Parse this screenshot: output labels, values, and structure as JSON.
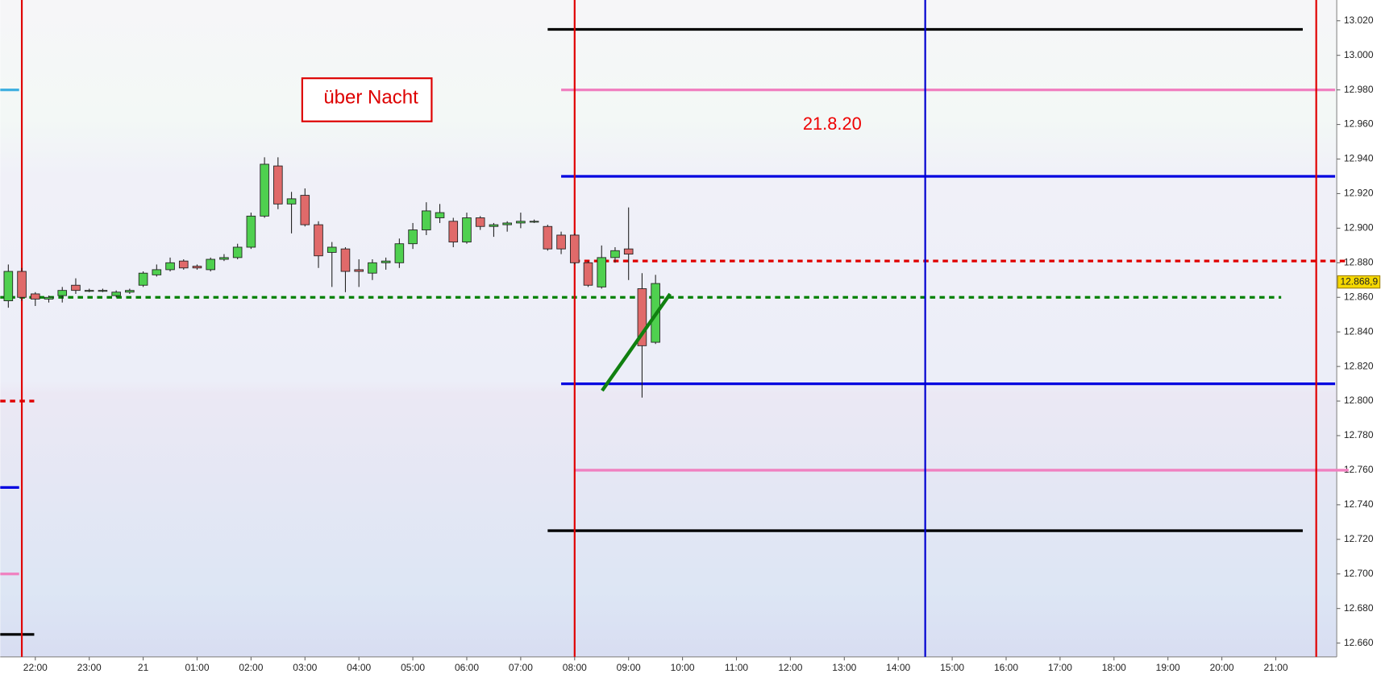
{
  "chart_data": {
    "type": "candlestick",
    "xlim": [
      -2.65,
      22.13
    ],
    "ylim": [
      12.652,
      13.032
    ],
    "xticks": [
      {
        "value": -2,
        "label": "22:00"
      },
      {
        "value": -1,
        "label": "23:00"
      },
      {
        "value": 0,
        "label": "21"
      },
      {
        "value": 1,
        "label": "01:00"
      },
      {
        "value": 2,
        "label": "02:00"
      },
      {
        "value": 3,
        "label": "03:00"
      },
      {
        "value": 4,
        "label": "04:00"
      },
      {
        "value": 5,
        "label": "05:00"
      },
      {
        "value": 6,
        "label": "06:00"
      },
      {
        "value": 7,
        "label": "07:00"
      },
      {
        "value": 8,
        "label": "08:00"
      },
      {
        "value": 9,
        "label": "09:00"
      },
      {
        "value": 10,
        "label": "10:00"
      },
      {
        "value": 11,
        "label": "11:00"
      },
      {
        "value": 12,
        "label": "12:00"
      },
      {
        "value": 13,
        "label": "13:00"
      },
      {
        "value": 14,
        "label": "14:00"
      },
      {
        "value": 15,
        "label": "15:00"
      },
      {
        "value": 16,
        "label": "16:00"
      },
      {
        "value": 17,
        "label": "17:00"
      },
      {
        "value": 18,
        "label": "18:00"
      },
      {
        "value": 19,
        "label": "19:00"
      },
      {
        "value": 20,
        "label": "20:00"
      },
      {
        "value": 21,
        "label": "21:00"
      }
    ],
    "yticks": [
      {
        "value": 12.66,
        "label": "12.660"
      },
      {
        "value": 12.68,
        "label": "12.680"
      },
      {
        "value": 12.7,
        "label": "12.700"
      },
      {
        "value": 12.72,
        "label": "12.720"
      },
      {
        "value": 12.74,
        "label": "12.740"
      },
      {
        "value": 12.76,
        "label": "12.760"
      },
      {
        "value": 12.78,
        "label": "12.780"
      },
      {
        "value": 12.8,
        "label": "12.800"
      },
      {
        "value": 12.82,
        "label": "12.820"
      },
      {
        "value": 12.84,
        "label": "12.840"
      },
      {
        "value": 12.86,
        "label": "12.860"
      },
      {
        "value": 12.88,
        "label": "12.880"
      },
      {
        "value": 12.9,
        "label": "12.900"
      },
      {
        "value": 12.92,
        "label": "12.920"
      },
      {
        "value": 12.94,
        "label": "12.940"
      },
      {
        "value": 12.96,
        "label": "12.960"
      },
      {
        "value": 12.98,
        "label": "12.980"
      },
      {
        "value": 13,
        "label": "13.000"
      },
      {
        "value": 13.02,
        "label": "13.020"
      }
    ],
    "up_color": "#4fd04f",
    "down_color": "#e06a6a",
    "x": [
      -2.5,
      -2.25,
      -2,
      -1.75,
      -1.5,
      -1.25,
      -1,
      -0.75,
      -0.5,
      -0.25,
      0,
      0.25,
      0.5,
      0.75,
      1,
      1.25,
      1.5,
      1.75,
      2,
      2.25,
      2.5,
      2.75,
      3,
      3.25,
      3.5,
      3.75,
      4,
      4.25,
      4.5,
      4.75,
      5,
      5.25,
      5.5,
      5.75,
      6,
      6.25,
      6.5,
      6.75,
      7,
      7.25,
      7.5,
      7.75,
      8,
      8.25,
      8.5,
      8.75,
      9,
      9.25,
      9.5
    ],
    "open": [
      12.858,
      12.875,
      12.862,
      12.859,
      12.861,
      12.867,
      12.864,
      12.864,
      12.861,
      12.863,
      12.867,
      12.873,
      12.876,
      12.881,
      12.878,
      12.876,
      12.882,
      12.883,
      12.889,
      12.907,
      12.936,
      12.914,
      12.919,
      12.902,
      12.886,
      12.888,
      12.876,
      12.874,
      12.88,
      12.88,
      12.891,
      12.899,
      12.906,
      12.904,
      12.892,
      12.906,
      12.901,
      12.902,
      12.903,
      12.904,
      12.901,
      12.896,
      12.896,
      12.88,
      12.866,
      12.883,
      12.888,
      12.865,
      12.834
    ],
    "high": [
      12.879,
      12.877,
      12.863,
      12.861,
      12.866,
      12.871,
      12.865,
      12.865,
      12.864,
      12.865,
      12.875,
      12.879,
      12.883,
      12.882,
      12.879,
      12.883,
      12.885,
      12.891,
      12.909,
      12.941,
      12.941,
      12.921,
      12.923,
      12.904,
      12.892,
      12.889,
      12.882,
      12.882,
      12.883,
      12.894,
      12.903,
      12.915,
      12.914,
      12.906,
      12.909,
      12.907,
      12.903,
      12.904,
      12.909,
      12.905,
      12.902,
      12.898,
      12.897,
      12.881,
      12.89,
      12.889,
      12.912,
      12.874,
      12.873
    ],
    "low": [
      12.854,
      12.858,
      12.855,
      12.857,
      12.857,
      12.862,
      12.863,
      12.863,
      12.86,
      12.862,
      12.866,
      12.872,
      12.875,
      12.876,
      12.876,
      12.875,
      12.881,
      12.882,
      12.888,
      12.906,
      12.911,
      12.897,
      12.901,
      12.877,
      12.866,
      12.863,
      12.866,
      12.87,
      12.876,
      12.877,
      12.888,
      12.896,
      12.903,
      12.889,
      12.891,
      12.899,
      12.895,
      12.898,
      12.9,
      12.903,
      12.887,
      12.885,
      12.879,
      12.866,
      12.865,
      12.88,
      12.87,
      12.802,
      12.833
    ],
    "close": [
      12.875,
      12.86,
      12.859,
      12.86,
      12.864,
      12.864,
      12.864,
      12.864,
      12.863,
      12.864,
      12.874,
      12.876,
      12.88,
      12.877,
      12.877,
      12.882,
      12.883,
      12.889,
      12.907,
      12.937,
      12.914,
      12.917,
      12.902,
      12.884,
      12.889,
      12.875,
      12.875,
      12.88,
      12.881,
      12.891,
      12.899,
      12.91,
      12.909,
      12.892,
      12.906,
      12.901,
      12.902,
      12.903,
      12.904,
      12.904,
      12.888,
      12.888,
      12.88,
      12.867,
      12.883,
      12.887,
      12.885,
      12.832,
      12.868
    ],
    "hlines": [
      {
        "value": 13.015,
        "from": 7.5,
        "to": 21.5,
        "color": "#000000",
        "style": "solid"
      },
      {
        "value": 12.98,
        "from": 7.75,
        "to": 22.1,
        "color": "#f080c0",
        "style": "solid"
      },
      {
        "value": 12.93,
        "from": 7.75,
        "to": 22.1,
        "color": "#0000e0",
        "style": "solid"
      },
      {
        "value": 12.881,
        "from": 8,
        "to": 22.3,
        "color": "#e00000",
        "style": "dotted"
      },
      {
        "value": 12.86,
        "from": -2.65,
        "to": 21.1,
        "color": "#008000",
        "style": "dotted"
      },
      {
        "value": 12.81,
        "from": 7.75,
        "to": 22.1,
        "color": "#0000e0",
        "style": "solid"
      },
      {
        "value": 12.76,
        "from": 8,
        "to": 22.35,
        "color": "#f080c0",
        "style": "solid"
      },
      {
        "value": 12.725,
        "from": 7.5,
        "to": 21.5,
        "color": "#000000",
        "style": "solid"
      },
      {
        "value": 12.98,
        "from": -2.65,
        "to": -2.3,
        "color": "#40b0e0",
        "style": "solid"
      },
      {
        "value": 12.8,
        "from": -2.65,
        "to": -2.02,
        "color": "#e00000",
        "style": "dotted"
      },
      {
        "value": 12.75,
        "from": -2.65,
        "to": -2.3,
        "color": "#0000e0",
        "style": "solid"
      },
      {
        "value": 12.7,
        "from": -2.65,
        "to": -2.3,
        "color": "#f080c0",
        "style": "solid"
      },
      {
        "value": 12.665,
        "from": -2.65,
        "to": -2.02,
        "color": "#000000",
        "style": "solid"
      }
    ],
    "vlines": [
      {
        "value": -2.25,
        "color": "#e00000"
      },
      {
        "value": 8,
        "color": "#e00000"
      },
      {
        "value": 14.5,
        "color": "#0000d0"
      },
      {
        "value": 21.75,
        "color": "#e00000"
      }
    ],
    "trendline": {
      "x": [
        8.51,
        9.77
      ],
      "y": [
        12.806,
        12.862
      ],
      "color": "#108010"
    },
    "last_price": {
      "value": 12.8689,
      "label": "12.868,9"
    },
    "annotations": {
      "session": "über Nacht",
      "date": "21.8.20"
    }
  }
}
